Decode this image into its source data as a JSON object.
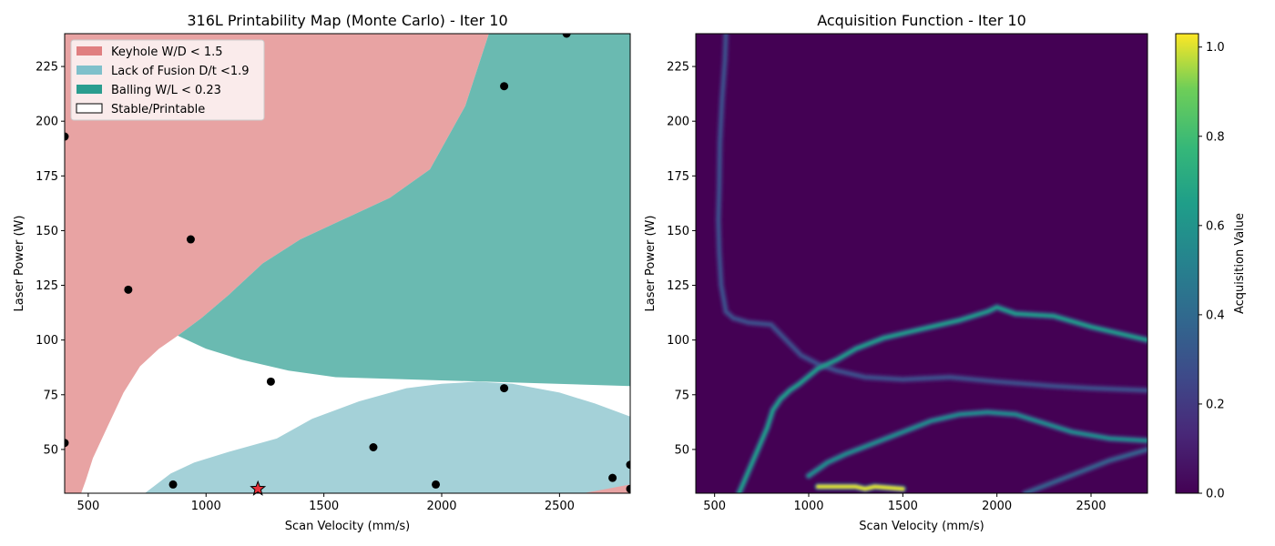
{
  "chart_data": [
    {
      "type": "heatmap",
      "title": "316L Printability Map (Monte Carlo) - Iter 10",
      "xlabel": "Scan Velocity (mm/s)",
      "ylabel": "Laser Power (W)",
      "xlim": [
        400,
        2800
      ],
      "ylim": [
        30,
        240
      ],
      "x_ticks": [
        500,
        1000,
        1500,
        2000,
        2500
      ],
      "y_ticks": [
        50,
        75,
        100,
        125,
        150,
        175,
        200,
        225
      ],
      "grid": false,
      "legend_placement": "upper-left",
      "colors": {
        "keyhole": "#e8a3a3",
        "lack_of_fusion": "#a4d1d8",
        "balling": "#6abab1",
        "stable": "#ffffff",
        "points": "#000000",
        "best": "#e8303a"
      },
      "legend": [
        {
          "label": "Keyhole W/D < 1.5",
          "swatch": "#e07f80"
        },
        {
          "label": "Lack of Fusion D/t <1.9",
          "swatch": "#7fc0cb"
        },
        {
          "label": "Balling W/L < 0.23",
          "swatch": "#2a9d8f"
        },
        {
          "label": "Stable/Printable",
          "swatch": "#ffffff"
        }
      ],
      "regions": {
        "keyhole_boundary": [
          [
            400,
            240
          ],
          [
            2200,
            240
          ],
          [
            2100,
            207
          ],
          [
            1950,
            178
          ],
          [
            1780,
            165
          ],
          [
            1580,
            155
          ],
          [
            1400,
            146
          ],
          [
            1240,
            135
          ],
          [
            1100,
            121
          ],
          [
            980,
            110
          ],
          [
            880,
            102
          ],
          [
            800,
            96
          ],
          [
            720,
            88
          ],
          [
            650,
            76
          ],
          [
            580,
            60
          ],
          [
            520,
            46
          ],
          [
            490,
            36
          ],
          [
            470,
            30
          ],
          [
            400,
            30
          ]
        ],
        "balling_boundary": [
          [
            2800,
            240
          ],
          [
            2200,
            240
          ],
          [
            2100,
            207
          ],
          [
            1950,
            178
          ],
          [
            1780,
            165
          ],
          [
            1580,
            155
          ],
          [
            1400,
            146
          ],
          [
            1240,
            135
          ],
          [
            1100,
            121
          ],
          [
            980,
            110
          ],
          [
            880,
            102
          ],
          [
            900,
            101
          ],
          [
            1000,
            96
          ],
          [
            1150,
            91
          ],
          [
            1350,
            86
          ],
          [
            1550,
            83
          ],
          [
            2800,
            79
          ]
        ],
        "lack_of_fusion_boundary": [
          [
            740,
            30
          ],
          [
            850,
            39
          ],
          [
            950,
            44
          ],
          [
            1100,
            49
          ],
          [
            1300,
            55
          ],
          [
            1450,
            64
          ],
          [
            1650,
            72
          ],
          [
            1850,
            78
          ],
          [
            2000,
            80
          ],
          [
            2150,
            81
          ],
          [
            2300,
            80
          ],
          [
            2500,
            76
          ],
          [
            2650,
            71
          ],
          [
            2800,
            65
          ],
          [
            2800,
            30
          ]
        ],
        "keyhole_bottom_right": [
          [
            2600,
            30
          ],
          [
            2700,
            32
          ],
          [
            2800,
            34
          ],
          [
            2800,
            30
          ]
        ]
      },
      "sampled_points": [
        {
          "x": 400,
          "y": 193
        },
        {
          "x": 935,
          "y": 146
        },
        {
          "x": 670,
          "y": 123
        },
        {
          "x": 1275,
          "y": 81
        },
        {
          "x": 2265,
          "y": 216
        },
        {
          "x": 2530,
          "y": 240
        },
        {
          "x": 2265,
          "y": 78
        },
        {
          "x": 1710,
          "y": 51
        },
        {
          "x": 400,
          "y": 53
        },
        {
          "x": 860,
          "y": 34
        },
        {
          "x": 1975,
          "y": 34
        },
        {
          "x": 2725,
          "y": 37
        },
        {
          "x": 2800,
          "y": 43
        },
        {
          "x": 2800,
          "y": 32
        }
      ],
      "best_point": {
        "x": 1220,
        "y": 32
      }
    },
    {
      "type": "heatmap",
      "title": "Acquisition Function - Iter 10",
      "xlabel": "Scan Velocity (mm/s)",
      "ylabel": "Laser Power (W)",
      "xlim": [
        400,
        2800
      ],
      "ylim": [
        30,
        240
      ],
      "x_ticks": [
        500,
        1000,
        1500,
        2000,
        2500
      ],
      "y_ticks": [
        50,
        75,
        100,
        125,
        150,
        175,
        200,
        225
      ],
      "grid": false,
      "colormap": "viridis",
      "colorbar": {
        "label": "Acquisition Value",
        "range": [
          0.0,
          1.03
        ],
        "ticks": [
          "0.0",
          "0.2",
          "0.4",
          "0.6",
          "0.8",
          "1.0"
        ],
        "tick_values": [
          0.0,
          0.2,
          0.4,
          0.6,
          0.8,
          1.0
        ]
      },
      "ridges": [
        {
          "points": [
            [
              560,
              240
            ],
            [
              555,
              228
            ],
            [
              540,
              210
            ],
            [
              528,
              190
            ],
            [
              525,
              170
            ],
            [
              520,
              155
            ],
            [
              525,
              140
            ],
            [
              535,
              125
            ],
            [
              560,
              113
            ],
            [
              600,
              110
            ],
            [
              680,
              108
            ],
            [
              800,
              107
            ],
            [
              880,
              100
            ],
            [
              960,
              93
            ],
            [
              1050,
              89
            ],
            [
              1150,
              86
            ],
            [
              1300,
              83
            ],
            [
              1500,
              82
            ],
            [
              1750,
              83
            ],
            [
              2000,
              81
            ],
            [
              2300,
              79
            ],
            [
              2500,
              78
            ],
            [
              2800,
              77
            ]
          ],
          "peak": 0.28
        },
        {
          "points": [
            [
              630,
              30
            ],
            [
              660,
              36
            ],
            [
              700,
              44
            ],
            [
              740,
              52
            ],
            [
              780,
              60
            ],
            [
              810,
              68
            ],
            [
              850,
              73
            ],
            [
              900,
              77
            ],
            [
              950,
              80
            ],
            [
              1050,
              87
            ],
            [
              1150,
              91
            ],
            [
              1250,
              96
            ],
            [
              1400,
              101
            ],
            [
              1600,
              105
            ],
            [
              1800,
              109
            ],
            [
              1950,
              113
            ],
            [
              2000,
              115
            ],
            [
              2100,
              112
            ],
            [
              2300,
              111
            ],
            [
              2500,
              106
            ],
            [
              2800,
              100
            ]
          ],
          "peak": 0.62
        },
        {
          "points": [
            [
              1000,
              38
            ],
            [
              1100,
              44
            ],
            [
              1200,
              48
            ],
            [
              1350,
              53
            ],
            [
              1500,
              58
            ],
            [
              1650,
              63
            ],
            [
              1800,
              66
            ],
            [
              1950,
              67
            ],
            [
              2100,
              66
            ],
            [
              2250,
              62
            ],
            [
              2400,
              58
            ],
            [
              2600,
              55
            ],
            [
              2800,
              54
            ]
          ],
          "peak": 0.55
        },
        {
          "points": [
            [
              1050,
              33
            ],
            [
              1100,
              33
            ],
            [
              1200,
              33
            ],
            [
              1250,
              33
            ],
            [
              1300,
              32
            ],
            [
              1350,
              33
            ],
            [
              1500,
              32
            ]
          ],
          "peak": 1.0
        },
        {
          "points": [
            [
              2150,
              30
            ],
            [
              2300,
              35
            ],
            [
              2450,
              40
            ],
            [
              2600,
              45
            ],
            [
              2800,
              50
            ]
          ],
          "peak": 0.35
        }
      ]
    }
  ]
}
